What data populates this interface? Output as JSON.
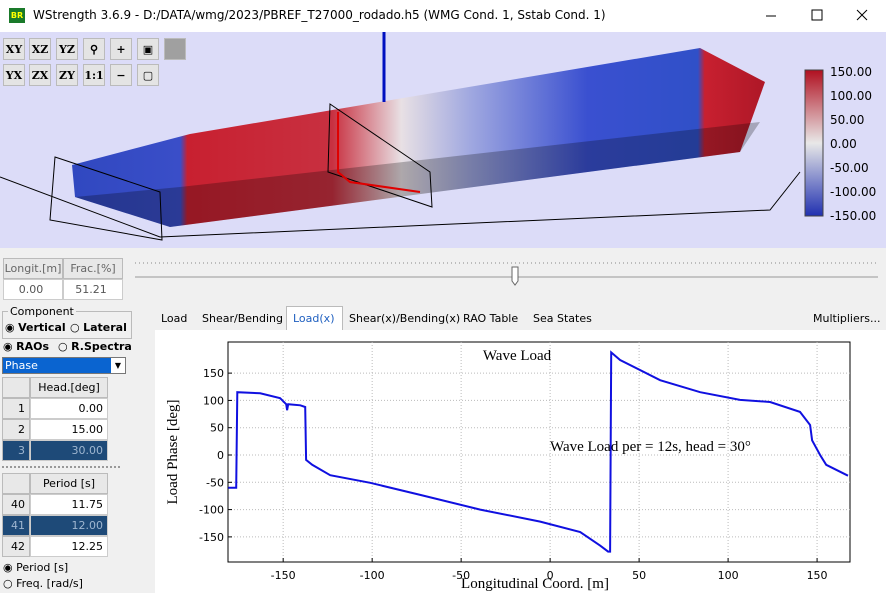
{
  "window": {
    "title": "WStrength 3.6.9 - D:/DATA/wmg/2023/PBREF_T27000_rodado.h5 (WMG Cond. 1, Sstab Cond. 1)"
  },
  "toolbar": {
    "row1": [
      "XY",
      "XZ",
      "YZ"
    ],
    "row2": [
      "YX",
      "ZX",
      "ZY",
      "1:1"
    ]
  },
  "colorbar": {
    "labels": [
      "150.00",
      "100.00",
      "50.00",
      "0.00",
      "-50.00",
      "-100.00",
      "-150.00"
    ]
  },
  "position": {
    "headers": [
      "Longit.[m]",
      "Frac.[%]"
    ],
    "values": [
      "0.00",
      "51.21"
    ]
  },
  "component": {
    "title": "Component",
    "options": [
      "Vertical",
      "Lateral"
    ]
  },
  "response": {
    "options": [
      "RAOs",
      "R.Spectra"
    ],
    "selected": "Phase"
  },
  "heading_table": {
    "header": "Head.[deg]",
    "rows": [
      [
        "1",
        "0.00"
      ],
      [
        "2",
        "15.00"
      ],
      [
        "3",
        "30.00"
      ]
    ]
  },
  "period_table": {
    "header": "Period [s]",
    "rows": [
      [
        "40",
        "11.75"
      ],
      [
        "41",
        "12.00"
      ],
      [
        "42",
        "12.25"
      ]
    ]
  },
  "axis_options": [
    "Period [s]",
    "Freq. [rad/s]"
  ],
  "tabs": [
    "Load",
    "Shear/Bending",
    "Load(x)",
    "Shear(x)/Bending(x)",
    "RAO Table",
    "Sea States"
  ],
  "multipliers": "Multipliers...",
  "chart_data": {
    "type": "line",
    "title": "Wave Load",
    "annotation": "Wave Load per = 12s, head = 30°",
    "x_label": "Longitudinal Coord. [m]",
    "y_label": "Load Phase [deg]",
    "color": "#1010e0",
    "x": [
      -180.9,
      -176.4,
      -175.8,
      -162.9,
      -151.7,
      -148.3,
      -147.8,
      -147.2,
      -140.4,
      -137.6,
      -137.1,
      -133.7,
      -123.6,
      -101.1,
      -73,
      -39.3,
      -5.6,
      16.9,
      28.1,
      32.6,
      33.7,
      34.3,
      39.3,
      61.8,
      84.3,
      106.7,
      123.6,
      140.4,
      146.1,
      147.2,
      151.7,
      155.1,
      167.4
    ],
    "values": [
      -60,
      -60,
      115,
      113,
      104,
      93,
      82,
      93,
      91,
      88,
      -9,
      -18,
      -37,
      -51,
      -73,
      -100,
      -122,
      -141,
      -166,
      -177,
      -177,
      188,
      174,
      137,
      115,
      101,
      97,
      79,
      55,
      27,
      0,
      -18,
      -38
    ],
    "xlim": [
      -181,
      168.5
    ],
    "ylim": [
      -196,
      207
    ],
    "xticks": [
      -150,
      -100,
      -50,
      0,
      50,
      100,
      150
    ],
    "yticks": [
      -150,
      -100,
      -50,
      0,
      50,
      100,
      150
    ],
    "grid": true
  }
}
